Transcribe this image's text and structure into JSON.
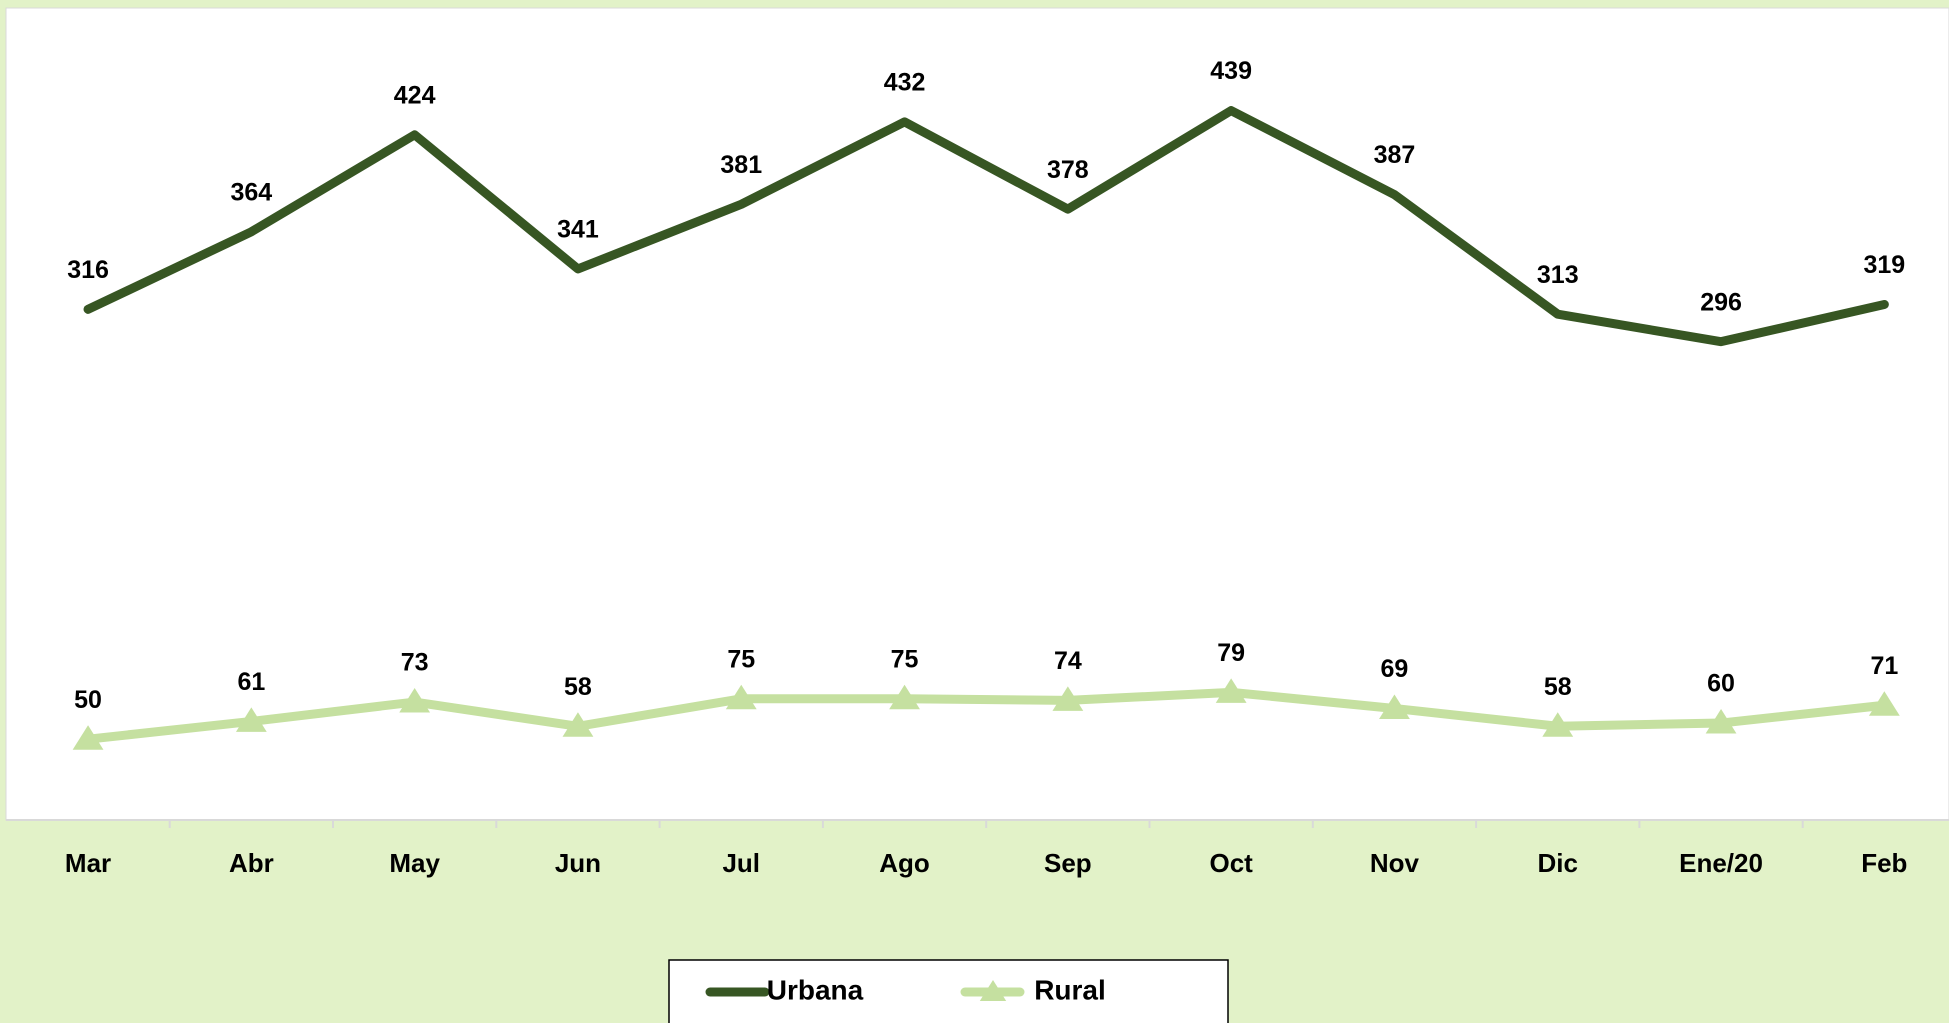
{
  "chart_data": {
    "type": "line",
    "categories": [
      "Mar",
      "Abr",
      "May",
      "Jun",
      "Jul",
      "Ago",
      "Sep",
      "Oct",
      "Nov",
      "Dic",
      "Ene/20",
      "Feb"
    ],
    "series": [
      {
        "name": "Urbana",
        "color": "#375623",
        "values": [
          316,
          364,
          424,
          341,
          381,
          432,
          378,
          439,
          387,
          313,
          296,
          319
        ]
      },
      {
        "name": "Rural",
        "color": "#c5e0a0",
        "marker": "triangle",
        "values": [
          50,
          61,
          73,
          58,
          75,
          75,
          74,
          79,
          69,
          58,
          60,
          71
        ]
      }
    ],
    "ylim": [
      0,
      500
    ],
    "legend": "bottom"
  }
}
